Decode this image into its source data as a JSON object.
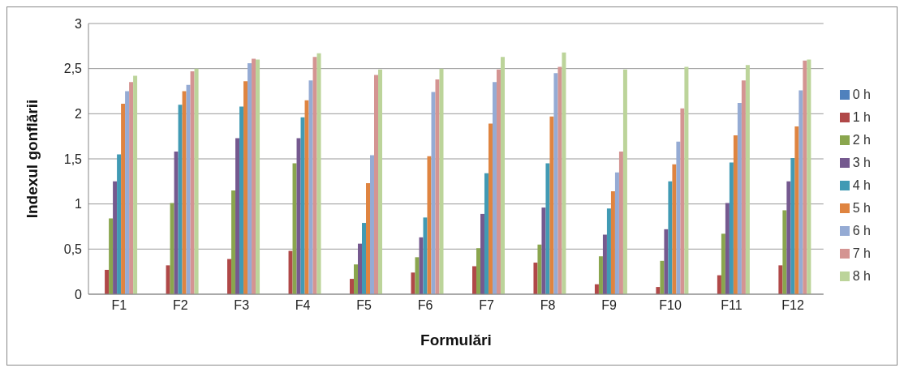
{
  "chart_data": {
    "type": "bar",
    "xlabel": "Formulări",
    "ylabel": "Indexul gonflării",
    "categories": [
      "F1",
      "F2",
      "F3",
      "F4",
      "F5",
      "F6",
      "F7",
      "F8",
      "F9",
      "F10",
      "F11",
      "F12"
    ],
    "series": [
      {
        "name": "0 h",
        "color": "#4f81bd",
        "values": [
          0,
          0,
          0,
          0,
          0,
          0,
          0,
          0,
          0,
          0,
          0,
          0
        ]
      },
      {
        "name": "1 h",
        "color": "#b04848",
        "values": [
          0.27,
          0.32,
          0.39,
          0.48,
          0.17,
          0.24,
          0.31,
          0.35,
          0.11,
          0.08,
          0.21,
          0.32
        ]
      },
      {
        "name": "2 h",
        "color": "#8aa64e",
        "values": [
          0.84,
          1.01,
          1.15,
          1.45,
          0.33,
          0.41,
          0.51,
          0.55,
          0.42,
          0.37,
          0.67,
          0.93
        ]
      },
      {
        "name": "3 h",
        "color": "#75598f",
        "values": [
          1.25,
          1.58,
          1.73,
          1.73,
          0.56,
          0.63,
          0.89,
          0.96,
          0.66,
          0.72,
          1.01,
          1.25
        ]
      },
      {
        "name": "4 h",
        "color": "#419ab4",
        "values": [
          1.55,
          2.1,
          2.08,
          1.96,
          0.79,
          0.85,
          1.34,
          1.45,
          0.95,
          1.25,
          1.46,
          1.51
        ]
      },
      {
        "name": "5 h",
        "color": "#df8440",
        "values": [
          2.11,
          2.25,
          2.36,
          2.15,
          1.23,
          1.53,
          1.89,
          1.97,
          1.14,
          1.44,
          1.76,
          1.86
        ]
      },
      {
        "name": "6 h",
        "color": "#95abd4",
        "values": [
          2.25,
          2.32,
          2.56,
          2.37,
          1.54,
          2.24,
          2.35,
          2.45,
          1.35,
          1.69,
          2.12,
          2.26
        ]
      },
      {
        "name": "7 h",
        "color": "#d49492",
        "values": [
          2.35,
          2.47,
          2.61,
          2.63,
          2.43,
          2.38,
          2.49,
          2.52,
          1.58,
          2.06,
          2.37,
          2.59
        ]
      },
      {
        "name": "8 h",
        "color": "#bcd49a",
        "values": [
          2.42,
          2.5,
          2.6,
          2.67,
          2.49,
          2.5,
          2.63,
          2.68,
          2.49,
          2.52,
          2.54,
          2.6
        ]
      }
    ],
    "ylim": [
      0,
      3
    ],
    "yticks": [
      0,
      {
        "value": 0.5,
        "label": "0,5"
      },
      1,
      {
        "value": 1.5,
        "label": "1,5"
      },
      2,
      {
        "value": 2.5,
        "label": "2,5"
      },
      3
    ],
    "grid": "y",
    "legend": "right"
  }
}
